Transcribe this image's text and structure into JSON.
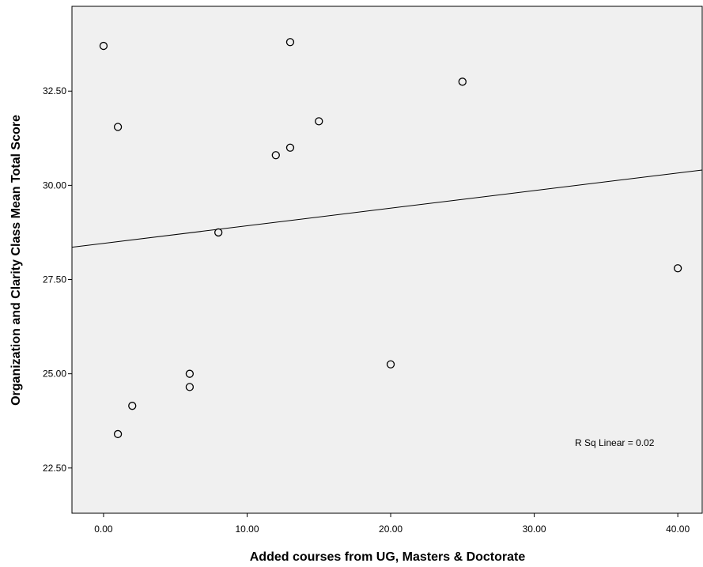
{
  "chart_data": {
    "type": "scatter",
    "xlabel": "Added courses from UG, Masters & Doctorate",
    "ylabel": "Organization and Clarity Class Mean Total Score",
    "xlim": [
      -2.2,
      41.7
    ],
    "ylim": [
      21.3,
      34.75
    ],
    "x_ticks": [
      {
        "value": 0,
        "label": "0.00"
      },
      {
        "value": 10,
        "label": "10.00"
      },
      {
        "value": 20,
        "label": "20.00"
      },
      {
        "value": 30,
        "label": "30.00"
      },
      {
        "value": 40,
        "label": "40.00"
      }
    ],
    "y_ticks": [
      {
        "value": 22.5,
        "label": "22.50"
      },
      {
        "value": 25,
        "label": "25.00"
      },
      {
        "value": 27.5,
        "label": "27.50"
      },
      {
        "value": 30,
        "label": "30.00"
      },
      {
        "value": 32.5,
        "label": "32.50"
      }
    ],
    "points": [
      {
        "x": 0,
        "y": 33.7
      },
      {
        "x": 13,
        "y": 33.8
      },
      {
        "x": 25,
        "y": 32.75
      },
      {
        "x": 1,
        "y": 31.55
      },
      {
        "x": 15,
        "y": 31.7
      },
      {
        "x": 13,
        "y": 31.0
      },
      {
        "x": 12,
        "y": 30.8
      },
      {
        "x": 8,
        "y": 28.75
      },
      {
        "x": 40,
        "y": 27.8
      },
      {
        "x": 20,
        "y": 25.25
      },
      {
        "x": 6,
        "y": 25.0
      },
      {
        "x": 6,
        "y": 24.65
      },
      {
        "x": 2,
        "y": 24.15
      },
      {
        "x": 1,
        "y": 23.4
      }
    ],
    "fit_line": {
      "type": "linear",
      "intercept": 28.46,
      "slope": 0.0467
    },
    "annotation": "R Sq Linear = 0.02",
    "grid": false,
    "plot_background": "#f0f0f0"
  }
}
